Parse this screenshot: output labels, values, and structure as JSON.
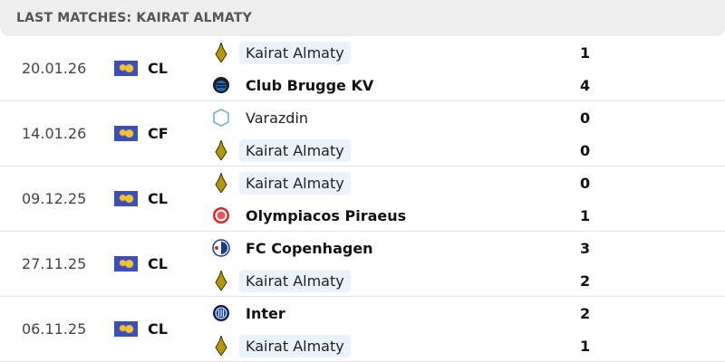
{
  "title": "LAST MATCHES: KAIRAT ALMATY",
  "matches": [
    {
      "date": "20.01.26",
      "competition": "CL",
      "home": {
        "name": "Kairat Almaty",
        "logo": "kairat-logo",
        "score": "1",
        "highlight": true,
        "winner": false
      },
      "away": {
        "name": "Club Brugge KV",
        "logo": "brugge-logo",
        "score": "4",
        "highlight": false,
        "winner": true
      }
    },
    {
      "date": "14.01.26",
      "competition": "CF",
      "home": {
        "name": "Varazdin",
        "logo": "varazdin-logo",
        "score": "0",
        "highlight": false,
        "winner": false
      },
      "away": {
        "name": "Kairat Almaty",
        "logo": "kairat-logo",
        "score": "0",
        "highlight": true,
        "winner": false
      }
    },
    {
      "date": "09.12.25",
      "competition": "CL",
      "home": {
        "name": "Kairat Almaty",
        "logo": "kairat-logo",
        "score": "0",
        "highlight": true,
        "winner": false
      },
      "away": {
        "name": "Olympiacos Piraeus",
        "logo": "olympiacos-logo",
        "score": "1",
        "highlight": false,
        "winner": true
      }
    },
    {
      "date": "27.11.25",
      "competition": "CL",
      "home": {
        "name": "FC Copenhagen",
        "logo": "copenhagen-logo",
        "score": "3",
        "highlight": false,
        "winner": true
      },
      "away": {
        "name": "Kairat Almaty",
        "logo": "kairat-logo",
        "score": "2",
        "highlight": true,
        "winner": false
      }
    },
    {
      "date": "06.11.25",
      "competition": "CL",
      "home": {
        "name": "Inter",
        "logo": "inter-logo",
        "score": "2",
        "highlight": false,
        "winner": true
      },
      "away": {
        "name": "Kairat Almaty",
        "logo": "kairat-logo",
        "score": "1",
        "highlight": true,
        "winner": false
      }
    }
  ]
}
